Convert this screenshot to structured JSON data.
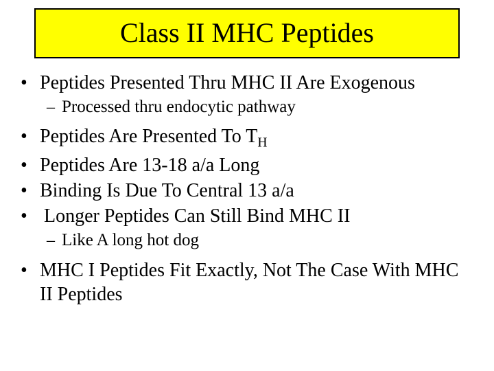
{
  "title": "Class II MHC Peptides",
  "bullets": [
    {
      "text": "Peptides Presented Thru MHC II Are Exogenous"
    }
  ],
  "sub1": [
    {
      "text": "Processed thru endocytic pathway"
    }
  ],
  "bullets2": [
    {
      "prefix": "Peptides Are Presented To T",
      "sub": "H"
    },
    {
      "text": "Peptides Are 13-18 a/a Long"
    },
    {
      "text": "Binding Is Due To Central 13 a/a"
    },
    {
      "text": " Longer Peptides Can Still Bind MHC II"
    }
  ],
  "sub2": [
    {
      "text": "Like A long hot dog"
    }
  ],
  "bullets3": [
    {
      "text": "MHC I Peptides Fit Exactly, Not The Case With MHC II Peptides"
    }
  ],
  "colors": {
    "title_bg": "#ffff00",
    "title_border": "#000000",
    "text": "#000000",
    "page_bg": "#ffffff"
  },
  "fonts": {
    "family": "Times New Roman",
    "title_size_pt": 40,
    "bullet_size_pt": 28,
    "sub_size_pt": 25
  }
}
